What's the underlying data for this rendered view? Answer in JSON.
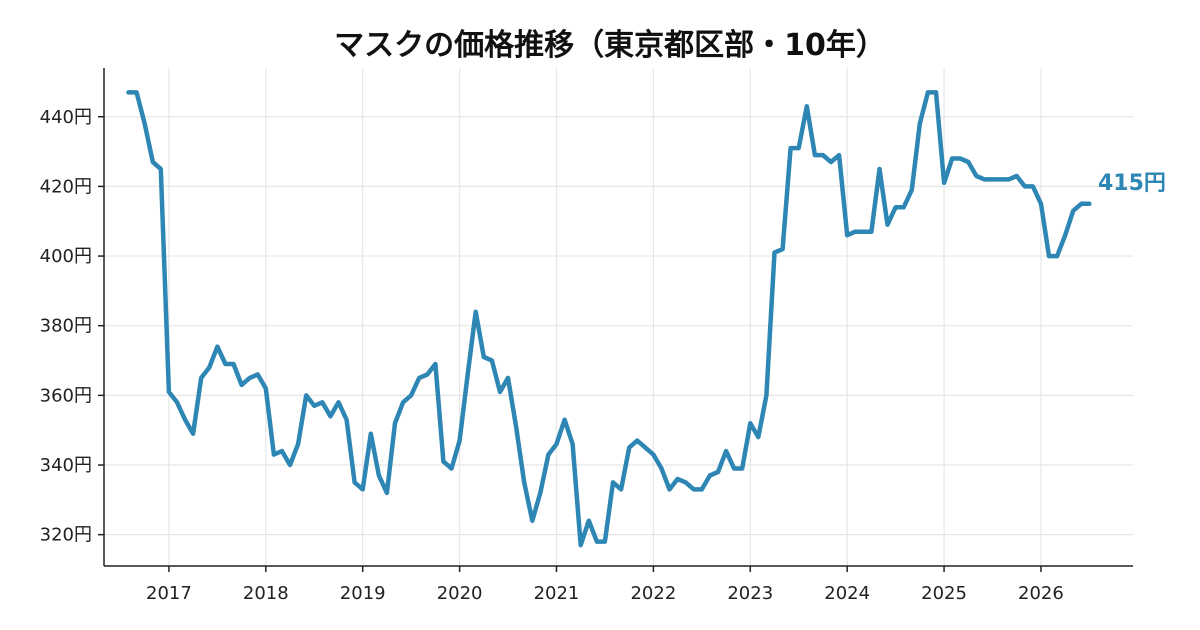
{
  "chart_data": {
    "type": "line",
    "title": "マスクの価格推移（東京都区部・10年）",
    "xlabel": "",
    "ylabel": "",
    "xlim": [
      2016.33,
      2026.95
    ],
    "ylim": [
      311,
      454
    ],
    "y_ticks": [
      320,
      340,
      360,
      380,
      400,
      420,
      440
    ],
    "y_tick_suffix": "円",
    "x_ticks": [
      "2017",
      "2018",
      "2019",
      "2020",
      "2021",
      "2022",
      "2023",
      "2024",
      "2025",
      "2026"
    ],
    "grid": true,
    "end_label": "415円",
    "colors": {
      "series": "#2e86b5",
      "grid": "#e6e6e6",
      "axis": "#222222"
    },
    "series": [
      {
        "name": "",
        "points": [
          [
            "2016-08",
            447
          ],
          [
            "2016-09",
            447
          ],
          [
            "2016-10",
            438
          ],
          [
            "2016-11",
            427
          ],
          [
            "2016-12",
            425
          ],
          [
            "2017-01",
            361
          ],
          [
            "2017-02",
            358
          ],
          [
            "2017-03",
            353
          ],
          [
            "2017-04",
            349
          ],
          [
            "2017-05",
            365
          ],
          [
            "2017-06",
            368
          ],
          [
            "2017-07",
            374
          ],
          [
            "2017-08",
            369
          ],
          [
            "2017-09",
            369
          ],
          [
            "2017-10",
            363
          ],
          [
            "2017-11",
            365
          ],
          [
            "2017-12",
            366
          ],
          [
            "2018-01",
            362
          ],
          [
            "2018-02",
            343
          ],
          [
            "2018-03",
            344
          ],
          [
            "2018-04",
            340
          ],
          [
            "2018-05",
            346
          ],
          [
            "2018-06",
            360
          ],
          [
            "2018-07",
            357
          ],
          [
            "2018-08",
            358
          ],
          [
            "2018-09",
            354
          ],
          [
            "2018-10",
            358
          ],
          [
            "2018-11",
            353
          ],
          [
            "2018-12",
            335
          ],
          [
            "2019-01",
            333
          ],
          [
            "2019-02",
            349
          ],
          [
            "2019-03",
            337
          ],
          [
            "2019-04",
            332
          ],
          [
            "2019-05",
            352
          ],
          [
            "2019-06",
            358
          ],
          [
            "2019-07",
            360
          ],
          [
            "2019-08",
            365
          ],
          [
            "2019-09",
            366
          ],
          [
            "2019-10",
            369
          ],
          [
            "2019-11",
            341
          ],
          [
            "2019-12",
            339
          ],
          [
            "2020-01",
            347
          ],
          [
            "2020-02",
            366
          ],
          [
            "2020-03",
            384
          ],
          [
            "2020-04",
            371
          ],
          [
            "2020-05",
            370
          ],
          [
            "2020-06",
            361
          ],
          [
            "2020-07",
            365
          ],
          [
            "2020-08",
            351
          ],
          [
            "2020-09",
            335
          ],
          [
            "2020-10",
            324
          ],
          [
            "2020-11",
            332
          ],
          [
            "2020-12",
            343
          ],
          [
            "2021-01",
            346
          ],
          [
            "2021-02",
            353
          ],
          [
            "2021-03",
            346
          ],
          [
            "2021-04",
            317
          ],
          [
            "2021-05",
            324
          ],
          [
            "2021-06",
            318
          ],
          [
            "2021-07",
            318
          ],
          [
            "2021-08",
            335
          ],
          [
            "2021-09",
            333
          ],
          [
            "2021-10",
            345
          ],
          [
            "2021-11",
            347
          ],
          [
            "2021-12",
            345
          ],
          [
            "2022-01",
            343
          ],
          [
            "2022-02",
            339
          ],
          [
            "2022-03",
            333
          ],
          [
            "2022-04",
            336
          ],
          [
            "2022-05",
            335
          ],
          [
            "2022-06",
            333
          ],
          [
            "2022-07",
            333
          ],
          [
            "2022-08",
            337
          ],
          [
            "2022-09",
            338
          ],
          [
            "2022-10",
            344
          ],
          [
            "2022-11",
            339
          ],
          [
            "2022-12",
            339
          ],
          [
            "2023-01",
            352
          ],
          [
            "2023-02",
            348
          ],
          [
            "2023-03",
            360
          ],
          [
            "2023-04",
            401
          ],
          [
            "2023-05",
            402
          ],
          [
            "2023-06",
            431
          ],
          [
            "2023-07",
            431
          ],
          [
            "2023-08",
            443
          ],
          [
            "2023-09",
            429
          ],
          [
            "2023-10",
            429
          ],
          [
            "2023-11",
            427
          ],
          [
            "2023-12",
            429
          ],
          [
            "2024-01",
            406
          ],
          [
            "2024-02",
            407
          ],
          [
            "2024-03",
            407
          ],
          [
            "2024-04",
            407
          ],
          [
            "2024-05",
            425
          ],
          [
            "2024-06",
            409
          ],
          [
            "2024-07",
            414
          ],
          [
            "2024-08",
            414
          ],
          [
            "2024-09",
            419
          ],
          [
            "2024-10",
            438
          ],
          [
            "2024-11",
            447
          ],
          [
            "2024-12",
            447
          ],
          [
            "2025-01",
            421
          ],
          [
            "2025-02",
            428
          ],
          [
            "2025-03",
            428
          ],
          [
            "2025-04",
            427
          ],
          [
            "2025-05",
            423
          ],
          [
            "2025-06",
            422
          ],
          [
            "2025-07",
            422
          ],
          [
            "2025-08",
            422
          ],
          [
            "2025-09",
            422
          ],
          [
            "2025-10",
            423
          ],
          [
            "2025-11",
            420
          ],
          [
            "2025-12",
            420
          ],
          [
            "2026-01",
            415
          ],
          [
            "2026-02",
            400
          ],
          [
            "2026-03",
            400
          ],
          [
            "2026-04",
            406
          ],
          [
            "2026-05",
            413
          ],
          [
            "2026-06",
            415
          ],
          [
            "2026-07",
            415
          ]
        ]
      }
    ]
  }
}
